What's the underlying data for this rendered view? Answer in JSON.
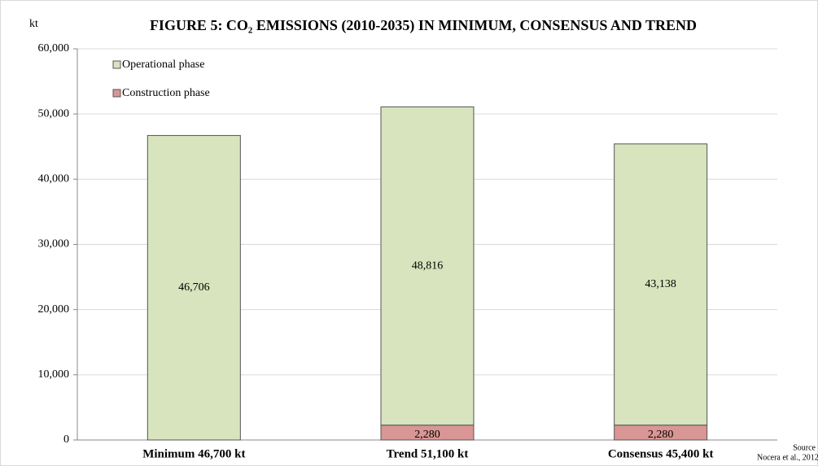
{
  "chart_data": {
    "type": "stacked_bar",
    "title": "FIGURE 5: CO₂ EMISSIONS (2010-2035) IN MINIMUM, CONSENSUS AND TREND",
    "y_label": "kt",
    "source": [
      "Source",
      "Nocera et al., 2012"
    ],
    "categories": [
      "Minimum 46,700 kt",
      "Trend 51,100 kt",
      "Consensus 45,400 kt"
    ],
    "series": [
      {
        "name": "Construction phase",
        "color": "#d99694",
        "values": [
          null,
          2280,
          2280
        ],
        "value_labels": [
          null,
          "2,280",
          "2,280"
        ]
      },
      {
        "name": "Operational phase",
        "color": "#d7e4bd",
        "values": [
          46706,
          48816,
          43138
        ],
        "value_labels": [
          "46,706",
          "48,816",
          "43,138"
        ]
      }
    ],
    "ylim": [
      0,
      60000
    ],
    "yticks": [
      0,
      {
        "value": 10000,
        "label": "10,000"
      },
      {
        "value": 20000,
        "label": "20,000"
      },
      {
        "value": 30000,
        "label": "30,000"
      },
      {
        "value": 40000,
        "label": "40,000"
      },
      {
        "value": 50000,
        "label": "50,000"
      },
      {
        "value": 60000,
        "label": "60,000"
      }
    ],
    "grid": true,
    "legend": "top-left"
  }
}
